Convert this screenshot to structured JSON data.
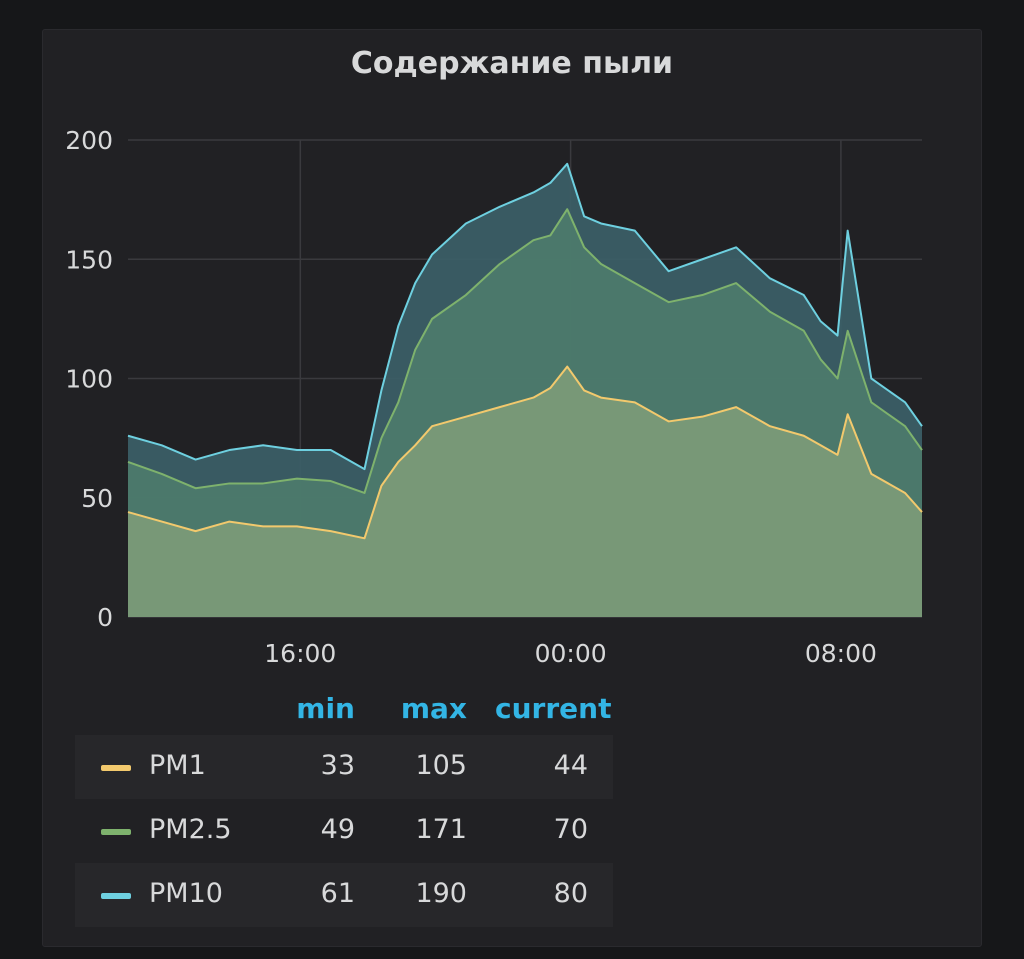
{
  "panel": {
    "title": "Содержание пыли"
  },
  "legend": {
    "headers": {
      "min": "min",
      "max": "max",
      "current": "current"
    },
    "rows": [
      {
        "name": "PM1",
        "min": "33",
        "max": "105",
        "current": "44",
        "color": "#f2c96d"
      },
      {
        "name": "PM2.5",
        "min": "49",
        "max": "171",
        "current": "70",
        "color": "#7eb26d"
      },
      {
        "name": "PM10",
        "min": "61",
        "max": "190",
        "current": "80",
        "color": "#6ed0e0"
      }
    ]
  },
  "chart_data": {
    "type": "area",
    "title": "Содержание пыли",
    "xlabel": "",
    "ylabel": "",
    "ylim": [
      0,
      200
    ],
    "xlim": [
      10.9,
      10.4
    ],
    "y_ticks": [
      "0",
      "50",
      "100",
      "150",
      "200"
    ],
    "x_ticks": [
      {
        "label": "16:00",
        "value": 16
      },
      {
        "label": "00:00",
        "value": 24
      },
      {
        "label": "08:00",
        "value": 32
      }
    ],
    "grid": true,
    "x": [
      10.9,
      11.9,
      12.9,
      13.9,
      14.9,
      15.9,
      16.9,
      17.9,
      18.4,
      18.9,
      19.4,
      19.9,
      20.9,
      21.9,
      22.9,
      23.4,
      23.9,
      24.4,
      24.9,
      25.9,
      26.9,
      27.9,
      28.9,
      29.9,
      30.9,
      31.4,
      31.9,
      32.2,
      32.9,
      33.9,
      34.4
    ],
    "series": [
      {
        "name": "PM1",
        "color": "#f2c96d",
        "fill": "#7a9a78",
        "values": [
          44,
          40,
          36,
          40,
          38,
          38,
          36,
          33,
          55,
          65,
          72,
          80,
          84,
          88,
          92,
          96,
          105,
          95,
          92,
          90,
          82,
          84,
          88,
          80,
          76,
          72,
          68,
          85,
          60,
          52,
          44
        ]
      },
      {
        "name": "PM2.5",
        "color": "#7eb26d",
        "fill": "#4c7a6c",
        "values": [
          65,
          60,
          54,
          56,
          56,
          58,
          57,
          52,
          75,
          90,
          112,
          125,
          135,
          148,
          158,
          160,
          171,
          155,
          148,
          140,
          132,
          135,
          140,
          128,
          120,
          108,
          100,
          120,
          90,
          80,
          70
        ]
      },
      {
        "name": "PM10",
        "color": "#6ed0e0",
        "fill": "#3b5e66",
        "values": [
          76,
          72,
          66,
          70,
          72,
          70,
          70,
          62,
          95,
          122,
          140,
          152,
          165,
          172,
          178,
          182,
          190,
          168,
          165,
          162,
          145,
          150,
          155,
          142,
          135,
          124,
          118,
          162,
          100,
          90,
          80
        ]
      }
    ]
  }
}
